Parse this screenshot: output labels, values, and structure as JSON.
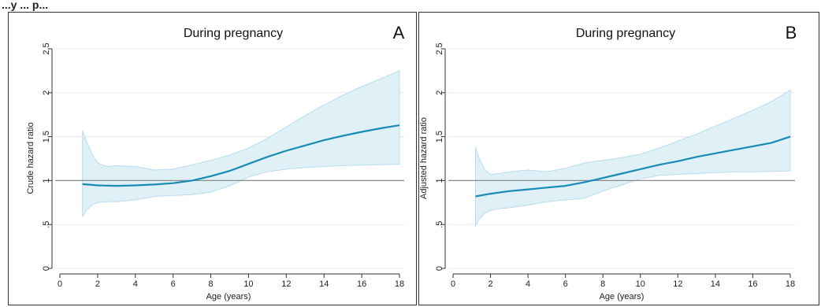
{
  "header_text": "...y ... p...",
  "colors": {
    "line": "#1a8bb3",
    "band": "#dff0f7",
    "band_edge": "#b8dded",
    "reference": "#8c8c8c",
    "grid": "#e8e8e8",
    "frame": "#333333"
  },
  "chart_data": [
    {
      "type": "line",
      "panel_letter": "A",
      "title": "During  pregnancy",
      "xlabel": "Age (years)",
      "ylabel": "Crude hazard ratio",
      "xlim": [
        0,
        18
      ],
      "ylim": [
        0,
        2.5
      ],
      "x_ticks": [
        0,
        2,
        4,
        6,
        8,
        10,
        12,
        14,
        16,
        18
      ],
      "y_ticks": [
        0,
        0.5,
        1,
        1.5,
        2,
        2.5
      ],
      "y_tick_labels": [
        "0",
        ".5",
        "1",
        "1.5",
        "2",
        "2.5"
      ],
      "reference_line": 1,
      "grid": true,
      "series": [
        {
          "role": "estimate",
          "x": [
            1.2,
            2,
            3,
            4,
            5,
            6,
            7,
            8,
            9,
            10,
            11,
            12,
            13,
            14,
            15,
            16,
            17,
            18
          ],
          "y": [
            0.96,
            0.945,
            0.94,
            0.945,
            0.955,
            0.97,
            1.0,
            1.05,
            1.11,
            1.19,
            1.27,
            1.34,
            1.4,
            1.46,
            1.51,
            1.555,
            1.595,
            1.63
          ]
        },
        {
          "role": "ci_upper",
          "x": [
            1.2,
            1.4,
            1.7,
            2,
            2.5,
            3,
            4,
            5,
            6,
            7,
            8,
            9,
            10,
            11,
            12,
            13,
            14,
            15,
            16,
            17,
            18
          ],
          "y": [
            1.57,
            1.45,
            1.3,
            1.2,
            1.16,
            1.17,
            1.16,
            1.12,
            1.13,
            1.18,
            1.23,
            1.29,
            1.37,
            1.48,
            1.61,
            1.74,
            1.86,
            1.97,
            2.07,
            2.16,
            2.25
          ]
        },
        {
          "role": "ci_lower",
          "x": [
            1.2,
            1.4,
            1.7,
            2,
            2.5,
            3,
            4,
            5,
            6,
            7,
            8,
            9,
            10,
            11,
            12,
            13,
            14,
            15,
            16,
            17,
            18
          ],
          "y": [
            0.59,
            0.66,
            0.72,
            0.75,
            0.76,
            0.76,
            0.78,
            0.82,
            0.83,
            0.84,
            0.87,
            0.94,
            1.04,
            1.1,
            1.13,
            1.15,
            1.16,
            1.17,
            1.175,
            1.18,
            1.185
          ]
        }
      ]
    },
    {
      "type": "line",
      "panel_letter": "B",
      "title": "During  pregnancy",
      "xlabel": "Age (years)",
      "ylabel": "Adjusted hazard ratio",
      "xlim": [
        0,
        18
      ],
      "ylim": [
        0,
        2.5
      ],
      "x_ticks": [
        0,
        2,
        4,
        6,
        8,
        10,
        12,
        14,
        16,
        18
      ],
      "y_ticks": [
        0,
        0.5,
        1,
        1.5,
        2,
        2.5
      ],
      "y_tick_labels": [
        "0",
        ".5",
        "1",
        "1.5",
        "2",
        "2.5"
      ],
      "reference_line": 1,
      "grid": true,
      "series": [
        {
          "role": "estimate",
          "x": [
            1.2,
            2,
            3,
            4,
            5,
            6,
            7,
            8,
            9,
            10,
            11,
            12,
            13,
            14,
            15,
            16,
            17,
            18
          ],
          "y": [
            0.82,
            0.85,
            0.88,
            0.9,
            0.92,
            0.94,
            0.98,
            1.03,
            1.08,
            1.13,
            1.18,
            1.22,
            1.27,
            1.31,
            1.35,
            1.39,
            1.43,
            1.5
          ]
        },
        {
          "role": "ci_upper",
          "x": [
            1.2,
            1.4,
            1.7,
            2,
            2.5,
            3,
            4,
            5,
            6,
            7,
            8,
            9,
            10,
            11,
            12,
            13,
            14,
            15,
            16,
            17,
            18
          ],
          "y": [
            1.38,
            1.25,
            1.12,
            1.07,
            1.08,
            1.1,
            1.12,
            1.1,
            1.14,
            1.2,
            1.23,
            1.26,
            1.3,
            1.37,
            1.45,
            1.53,
            1.62,
            1.71,
            1.8,
            1.9,
            2.03
          ]
        },
        {
          "role": "ci_lower",
          "x": [
            1.2,
            1.4,
            1.7,
            2,
            2.5,
            3,
            4,
            5,
            6,
            7,
            8,
            9,
            10,
            11,
            12,
            13,
            14,
            15,
            16,
            17,
            18
          ],
          "y": [
            0.49,
            0.56,
            0.63,
            0.66,
            0.68,
            0.69,
            0.72,
            0.76,
            0.78,
            0.8,
            0.88,
            0.95,
            1.02,
            1.06,
            1.07,
            1.08,
            1.09,
            1.1,
            1.1,
            1.105,
            1.11
          ]
        }
      ]
    }
  ]
}
